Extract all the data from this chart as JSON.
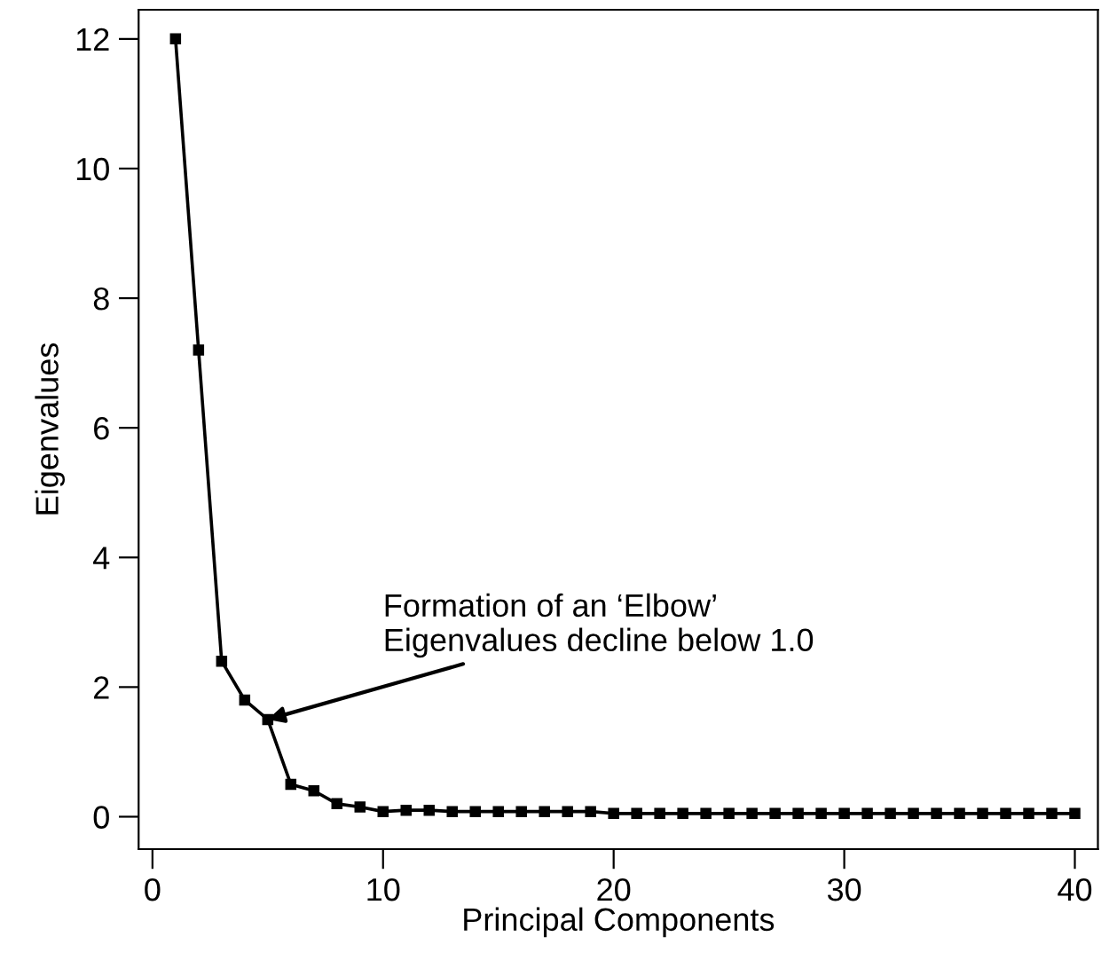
{
  "chart_data": {
    "type": "line",
    "xlabel": "Principal Components",
    "ylabel": "Eigenvalues",
    "x": [
      1,
      2,
      3,
      4,
      5,
      6,
      7,
      8,
      9,
      10,
      11,
      12,
      13,
      14,
      15,
      16,
      17,
      18,
      19,
      20,
      21,
      22,
      23,
      24,
      25,
      26,
      27,
      28,
      29,
      30,
      31,
      32,
      33,
      34,
      35,
      36,
      37,
      38,
      39,
      40
    ],
    "series": [
      {
        "color": "#000000",
        "values": [
          12.0,
          7.2,
          2.4,
          1.8,
          1.5,
          0.5,
          0.4,
          0.2,
          0.15,
          0.08,
          0.1,
          0.1,
          0.08,
          0.08,
          0.08,
          0.08,
          0.08,
          0.08,
          0.08,
          0.05,
          0.05,
          0.05,
          0.05,
          0.05,
          0.05,
          0.05,
          0.05,
          0.05,
          0.05,
          0.05,
          0.05,
          0.05,
          0.05,
          0.05,
          0.05,
          0.05,
          0.05,
          0.05,
          0.05,
          0.05
        ]
      }
    ],
    "xlim": [
      -0.6,
      41
    ],
    "ylim": [
      -0.5,
      12.45
    ],
    "xticks": [
      0,
      10,
      20,
      30,
      40
    ],
    "yticks": [
      0,
      2,
      4,
      6,
      8,
      10,
      12
    ],
    "marker": "square",
    "line_style": "solid",
    "grid": false,
    "legend": false,
    "annotations": [
      {
        "text": "Formation of an ‘Elbow’\nEigenvalues decline below 1.0",
        "x": 5,
        "y": 1.5
      }
    ]
  }
}
